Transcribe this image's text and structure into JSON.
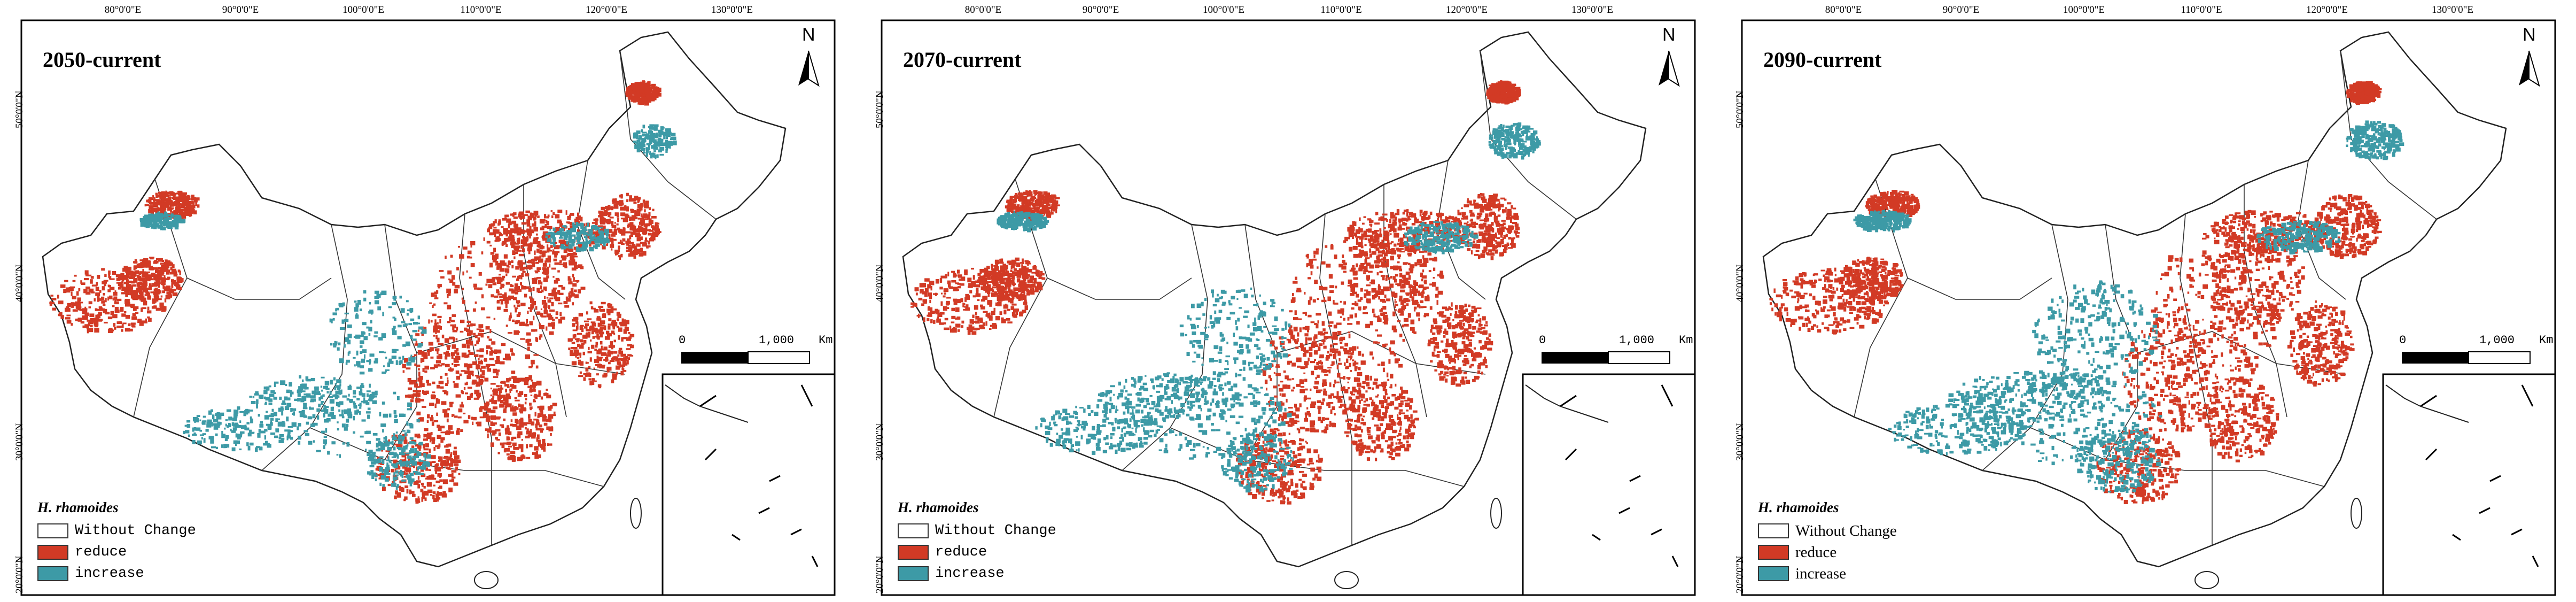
{
  "species": "H. rhamoides",
  "colors": {
    "reduce": "#d23a25",
    "increase": "#3d9aa6",
    "without_change": "#ffffff",
    "border": "#222222"
  },
  "lon_ticks": [
    "80°0'0\"E",
    "90°0'0\"E",
    "100°0'0\"E",
    "110°0'0\"E",
    "120°0'0\"E",
    "130°0'0\"E"
  ],
  "lat_ticks": [
    "50°0'0\"N",
    "40°0'0\"N",
    "30°0'0\"N",
    "20°0'0\"N"
  ],
  "north": "N",
  "scale": {
    "zero": "0",
    "distance": "1,000",
    "unit": "Km"
  },
  "legend": [
    {
      "key": "without_change",
      "label": "Without Change",
      "icon": "swatch-white"
    },
    {
      "key": "reduce",
      "label": "reduce",
      "icon": "swatch-red"
    },
    {
      "key": "increase",
      "label": "increase",
      "icon": "swatch-teal"
    }
  ],
  "panels": [
    {
      "id": "p2050",
      "title": "2050-current"
    },
    {
      "id": "p2070",
      "title": "2070-current"
    },
    {
      "id": "p2090",
      "title": "2090-current"
    }
  ]
}
